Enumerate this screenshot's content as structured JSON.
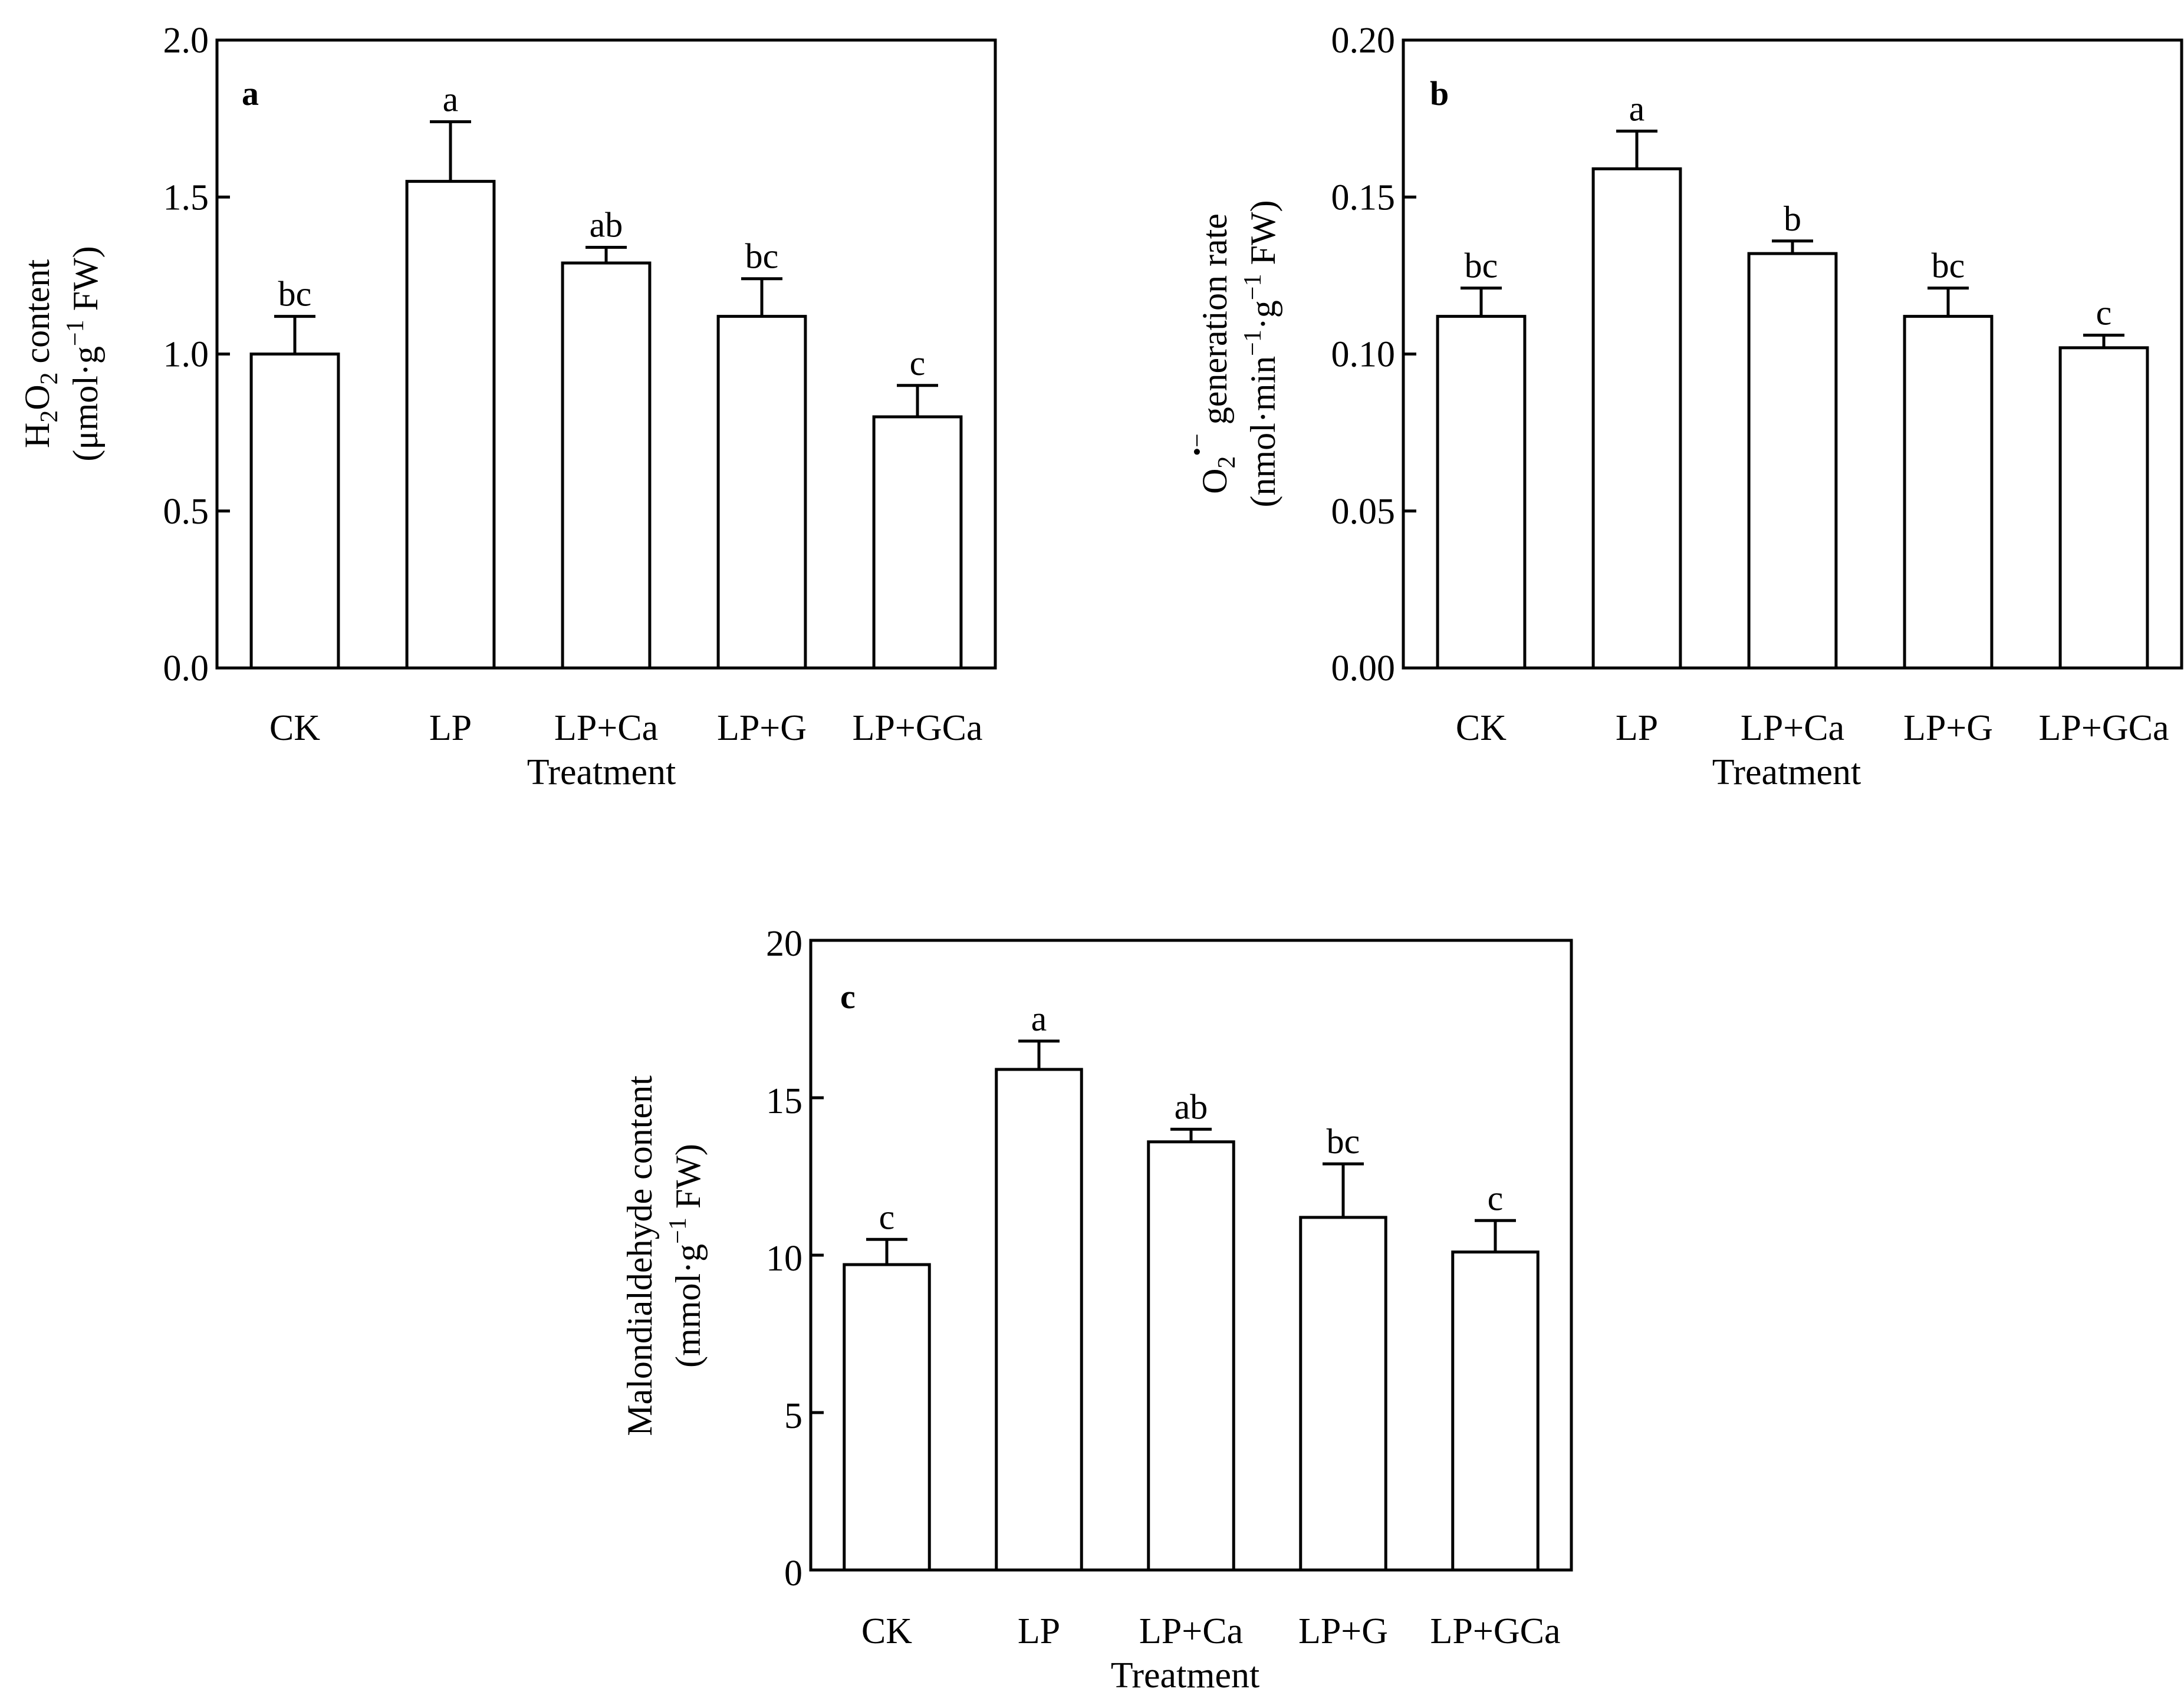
{
  "figure": {
    "colors": {
      "bar_fill": "#ffffff",
      "stroke": "#000000",
      "background": "#ffffff"
    }
  },
  "chart_data": [
    {
      "id": "a",
      "type": "bar",
      "panel_label": "a",
      "categories": [
        "CK",
        "LP",
        "LP+Ca",
        "LP+G",
        "LP+GCa"
      ],
      "values": [
        1.0,
        1.55,
        1.29,
        1.12,
        0.8
      ],
      "errors": [
        0.12,
        0.19,
        0.05,
        0.12,
        0.1
      ],
      "significance": [
        "bc",
        "a",
        "ab",
        "bc",
        "c"
      ],
      "xlabel": "Treatment",
      "ylabel_line1": {
        "pre": "H",
        "sub1": "2",
        "mid": "O",
        "sub2": "2",
        "post": " content"
      },
      "ylabel_line2": {
        "pre": "(μmol·g",
        "sup": "−1",
        "post": " FW)"
      },
      "ylim": [
        0,
        2.0
      ],
      "yticks": [
        0.0,
        0.5,
        1.0,
        1.5,
        2.0
      ],
      "ytick_labels": [
        "0.0",
        "0.5",
        "1.0",
        "1.5",
        "2.0"
      ]
    },
    {
      "id": "b",
      "type": "bar",
      "panel_label": "b",
      "categories": [
        "CK",
        "LP",
        "LP+Ca",
        "LP+G",
        "LP+GCa"
      ],
      "values": [
        0.112,
        0.159,
        0.132,
        0.112,
        0.102
      ],
      "errors": [
        0.009,
        0.012,
        0.004,
        0.009,
        0.004
      ],
      "significance": [
        "bc",
        "a",
        "b",
        "bc",
        "c"
      ],
      "xlabel": "Treatment",
      "ylabel_line1": {
        "pre": "O",
        "sub1": "2",
        "sup1": "•−",
        "post": " generation rate"
      },
      "ylabel_line2": {
        "pre": "(nmol·min",
        "sup1": "−1",
        "mid": "·g",
        "sup2": "−1",
        "post": " FW)"
      },
      "ylim": [
        0,
        0.2
      ],
      "yticks": [
        0.0,
        0.05,
        0.1,
        0.15,
        0.2
      ],
      "ytick_labels": [
        "0.00",
        "0.05",
        "0.10",
        "0.15",
        "0.20"
      ]
    },
    {
      "id": "c",
      "type": "bar",
      "panel_label": "c",
      "categories": [
        "CK",
        "LP",
        "LP+Ca",
        "LP+G",
        "LP+GCa"
      ],
      "values": [
        9.7,
        15.9,
        13.6,
        11.2,
        10.1
      ],
      "errors": [
        0.8,
        0.9,
        0.4,
        1.7,
        1.0
      ],
      "significance": [
        "c",
        "a",
        "ab",
        "bc",
        "c"
      ],
      "xlabel": "Treatment",
      "ylabel_line1": {
        "pre": "Malondialdehyde content"
      },
      "ylabel_line2": {
        "pre": "(mmol·g",
        "sup": "−1",
        "post": " FW)"
      },
      "ylim": [
        0,
        20
      ],
      "yticks": [
        0,
        5,
        10,
        15,
        20
      ],
      "ytick_labels": [
        "0",
        "5",
        "10",
        "15",
        "20"
      ]
    }
  ]
}
